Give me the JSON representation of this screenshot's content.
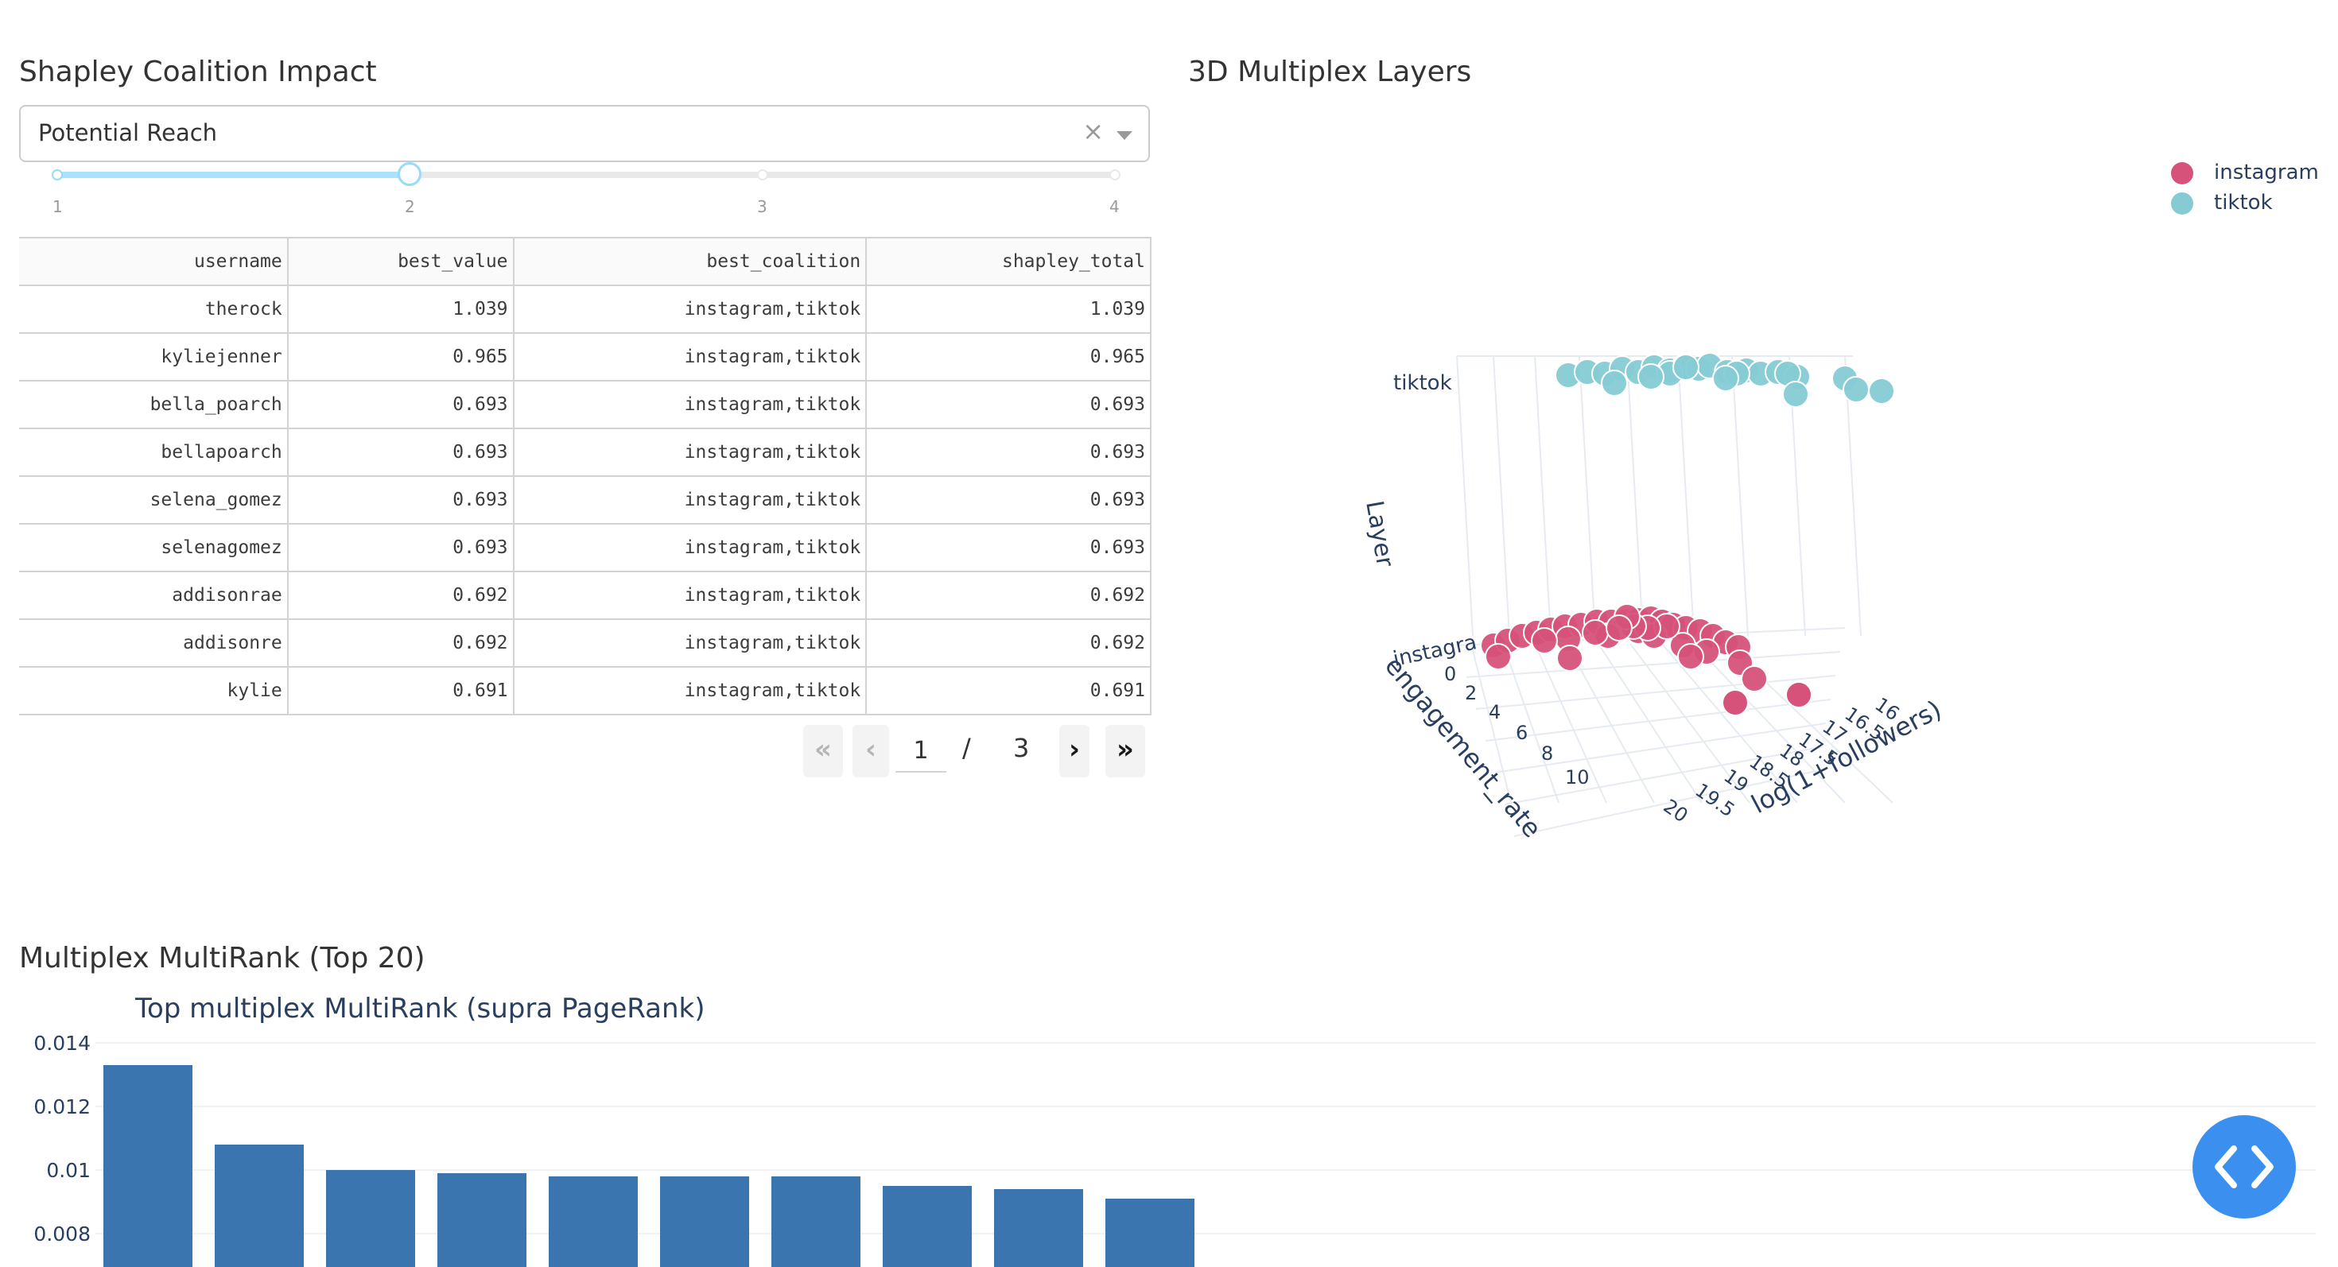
{
  "shapley": {
    "title": "Shapley Coalition Impact",
    "dropdown": {
      "value": "Potential Reach",
      "clear": "×"
    },
    "slider": {
      "marks": [
        "1",
        "2",
        "3",
        "4"
      ],
      "value": 2
    },
    "table": {
      "columns": [
        "username",
        "best_value",
        "best_coalition",
        "shapley_total"
      ],
      "rows": [
        [
          "therock",
          "1.039",
          "instagram,tiktok",
          "1.039"
        ],
        [
          "kyliejenner",
          "0.965",
          "instagram,tiktok",
          "0.965"
        ],
        [
          "bella_poarch",
          "0.693",
          "instagram,tiktok",
          "0.693"
        ],
        [
          "bellapoarch",
          "0.693",
          "instagram,tiktok",
          "0.693"
        ],
        [
          "selena_gomez",
          "0.693",
          "instagram,tiktok",
          "0.693"
        ],
        [
          "selenagomez",
          "0.693",
          "instagram,tiktok",
          "0.693"
        ],
        [
          "addisonrae",
          "0.692",
          "instagram,tiktok",
          "0.692"
        ],
        [
          "addisonre",
          "0.692",
          "instagram,tiktok",
          "0.692"
        ],
        [
          "kylie",
          "0.691",
          "instagram,tiktok",
          "0.691"
        ]
      ]
    },
    "pager": {
      "first": "«",
      "prev": "‹",
      "next": "›",
      "last": "»",
      "current": "1",
      "separator": "/",
      "total": "3"
    }
  },
  "multiplex3d": {
    "title": "3D Multiplex Layers",
    "legend": [
      {
        "name": "instagram",
        "color": "#d6527a"
      },
      {
        "name": "tiktok",
        "color": "#86cbd4"
      }
    ],
    "axes": {
      "z_label": "Layer",
      "x_label": "engagement_rate",
      "y_label": "log(1+followers)",
      "z_ticks": [
        "instagra",
        "tiktok"
      ],
      "x_ticks": [
        "0",
        "2",
        "4",
        "6",
        "8",
        "10"
      ],
      "y_ticks": [
        "16",
        "16.5",
        "17",
        "17.5",
        "18",
        "18.5",
        "19",
        "19.5",
        "20"
      ]
    }
  },
  "multirank": {
    "title": "Multiplex MultiRank (Top 20)",
    "chart_data": {
      "type": "bar",
      "title": "Top multiplex MultiRank (supra PageRank)",
      "values": [
        0.0133,
        0.0108,
        0.01,
        0.0099,
        0.0098,
        0.0098,
        0.0098,
        0.0095,
        0.0094,
        0.0091
      ],
      "yticks": [
        "0.014",
        "0.012",
        "0.01",
        "0.008"
      ],
      "color": "#3b75af",
      "grid": true
    }
  },
  "fab": {
    "icon": "code-icon",
    "color": "#3a8fef"
  }
}
